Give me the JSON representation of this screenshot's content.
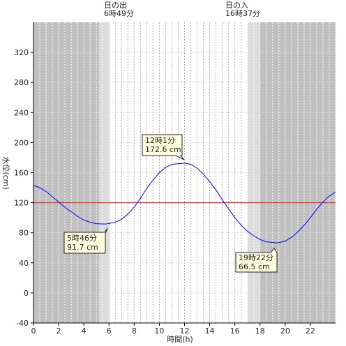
{
  "chart_data": {
    "type": "line",
    "xlabel": "時間(h)",
    "ylabel": "水位(cm)",
    "xlim": [
      0,
      24
    ],
    "ylim": [
      -40,
      360
    ],
    "xticks": [
      0,
      2,
      4,
      6,
      8,
      10,
      12,
      14,
      16,
      18,
      20,
      22
    ],
    "yticks": [
      -40,
      0,
      40,
      80,
      120,
      160,
      200,
      240,
      280,
      320
    ],
    "minor_vertical_grid_step_h": 0.5,
    "reference_line": {
      "y": 120,
      "color": "#ff0000"
    },
    "sunrise": {
      "label": "日の出",
      "time_text": "6時49分",
      "hour": 6.82
    },
    "sunset": {
      "label": "日の入",
      "time_text": "16時37分",
      "hour": 16.62
    },
    "night_color": "#c0c0c0",
    "twilight_color": "#dcdcdc",
    "twilight_ranges": [
      [
        5.2,
        6.1
      ],
      [
        17.0,
        18.0
      ]
    ],
    "series": [
      {
        "color": "#0000ff",
        "x": [
          0,
          0.5,
          1,
          1.5,
          2,
          2.5,
          3,
          3.5,
          4,
          4.5,
          5,
          5.77,
          6.5,
          7,
          7.5,
          8,
          8.5,
          9,
          9.5,
          10,
          10.5,
          11,
          11.5,
          12.02,
          12.5,
          13,
          13.5,
          14,
          14.5,
          15,
          15.5,
          16,
          16.5,
          17,
          17.5,
          18,
          18.5,
          19.37,
          20,
          20.5,
          21,
          21.5,
          22,
          22.5,
          23,
          23.5,
          24
        ],
        "y": [
          143,
          140,
          135,
          128,
          121,
          114,
          108,
          102,
          97,
          94,
          92,
          91.7,
          94,
          98,
          105,
          114,
          126,
          139,
          150,
          160,
          167,
          171,
          172,
          172.6,
          171,
          166,
          158,
          148,
          137,
          124,
          112,
          100,
          90,
          82,
          76,
          71,
          68,
          66.5,
          69,
          74,
          81,
          90,
          100,
          111,
          121,
          129,
          134
        ]
      }
    ],
    "annotations": [
      {
        "time_text": "12時1分",
        "value_text": "172.6 cm",
        "x": 12.02,
        "y": 172.6
      },
      {
        "time_text": "5時46分",
        "value_text": "91.7 cm",
        "x": 5.77,
        "y": 91.7
      },
      {
        "time_text": "19時22分",
        "value_text": "66.5 cm",
        "x": 19.37,
        "y": 66.5
      }
    ]
  }
}
